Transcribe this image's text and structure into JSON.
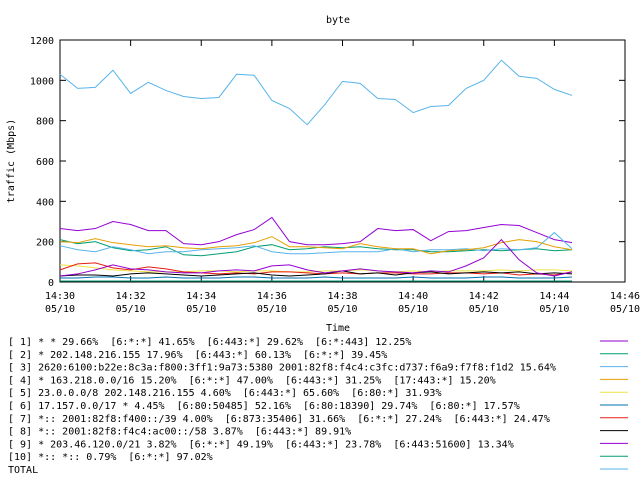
{
  "chart_data": {
    "type": "line",
    "title": "byte",
    "x_label": "Time",
    "y_label": "traffic (Mbps)",
    "x": [
      870,
      870.5,
      871,
      871.5,
      872,
      872.5,
      873,
      873.5,
      874,
      874.5,
      875,
      875.5,
      876,
      876.5,
      877,
      877.5,
      878,
      878.5,
      879,
      879.5,
      880,
      880.5,
      881,
      881.5,
      882,
      882.5,
      883,
      883.5,
      884,
      884.5
    ],
    "xlim": [
      870,
      886
    ],
    "xticks": [
      {
        "value": 870,
        "label": "14:30",
        "date": "05/10"
      },
      {
        "value": 872,
        "label": "14:32",
        "date": "05/10"
      },
      {
        "value": 874,
        "label": "14:34",
        "date": "05/10"
      },
      {
        "value": 876,
        "label": "14:36",
        "date": "05/10"
      },
      {
        "value": 878,
        "label": "14:38",
        "date": "05/10"
      },
      {
        "value": 880,
        "label": "14:40",
        "date": "05/10"
      },
      {
        "value": 882,
        "label": "14:42",
        "date": "05/10"
      },
      {
        "value": 884,
        "label": "14:44",
        "date": "05/10"
      },
      {
        "value": 886,
        "label": "14:46",
        "date": "05/10"
      }
    ],
    "ylim": [
      0,
      1200
    ],
    "yticks": [
      0,
      200,
      400,
      600,
      800,
      1000,
      1200
    ],
    "grid": false,
    "series": [
      {
        "name": "[ 1] * * 29.66%  [6:*:*] 41.65%  [6:443:*] 29.62%  [6:*:443] 12.25%",
        "color": "#9400d3",
        "values": [
          265,
          255,
          265,
          300,
          285,
          255,
          255,
          190,
          185,
          200,
          235,
          260,
          320,
          200,
          185,
          185,
          190,
          200,
          265,
          255,
          260,
          205,
          250,
          255,
          270,
          285,
          280,
          245,
          210,
          195
        ]
      },
      {
        "name": "[ 2] * 202.148.216.155 17.96%  [6:443:*] 60.13%  [6:*:*] 39.45%",
        "color": "#009e73",
        "values": [
          210,
          190,
          200,
          170,
          155,
          160,
          175,
          135,
          130,
          140,
          150,
          175,
          185,
          160,
          165,
          175,
          170,
          175,
          165,
          160,
          160,
          150,
          150,
          155,
          160,
          155,
          160,
          165,
          155,
          160
        ]
      },
      {
        "name": "[ 3] 2620:6100:b22e:8c3a:f800:3ff1:9a73:5380 2001:82f8:f4c4:c3fc:d737:f6a9:f7f8:f1d2 15.64%",
        "color": "#56b4e9",
        "values": [
          180,
          160,
          150,
          175,
          160,
          140,
          150,
          150,
          160,
          165,
          170,
          180,
          150,
          140,
          140,
          145,
          150,
          150,
          150,
          165,
          150,
          160,
          160,
          165,
          155,
          165,
          160,
          170,
          245,
          165
        ]
      },
      {
        "name": "[ 4] * 163.218.0.0/16 15.20%  [6:*:*] 47.00%  [6:443:*] 31.25%  [17:443:*] 15.20%",
        "color": "#e69f00",
        "values": [
          200,
          195,
          215,
          195,
          185,
          175,
          180,
          170,
          165,
          175,
          180,
          195,
          225,
          175,
          175,
          170,
          165,
          190,
          175,
          165,
          165,
          140,
          155,
          160,
          170,
          195,
          210,
          200,
          175,
          160
        ]
      },
      {
        "name": "[ 5] 23.0.0.0/8 202.148.216.155 4.60%  [6:443:*] 65.60%  [6:80:*] 31.93%",
        "color": "#f0e442",
        "values": [
          85,
          80,
          70,
          60,
          55,
          50,
          50,
          50,
          55,
          55,
          50,
          55,
          55,
          50,
          50,
          55,
          55,
          60,
          55,
          50,
          55,
          50,
          55,
          55,
          55,
          60,
          55,
          60,
          60,
          55
        ]
      },
      {
        "name": "[ 6] 17.157.0.0/17 * 4.45%  [6:80:50485] 52.16%  [6:80:18390] 29.74%  [6:80:*] 17.57%",
        "color": "#0072b2",
        "values": [
          20,
          20,
          25,
          25,
          20,
          20,
          25,
          20,
          20,
          20,
          25,
          25,
          20,
          20,
          20,
          25,
          20,
          20,
          20,
          20,
          25,
          20,
          20,
          20,
          25,
          25,
          20,
          20,
          20,
          25
        ]
      },
      {
        "name": "[ 7] *:: 2001:82f8:f400::/39 4.00%  [6:873:35406] 31.66%  [6:*:*] 27.24%  [6:443:*] 24.47%",
        "color": "#e51e10",
        "values": [
          60,
          90,
          95,
          70,
          60,
          75,
          65,
          50,
          45,
          40,
          45,
          40,
          50,
          50,
          45,
          40,
          45,
          40,
          45,
          45,
          40,
          40,
          45,
          45,
          40,
          45,
          35,
          40,
          35,
          50
        ]
      },
      {
        "name": "[ 8] *:: 2001:82f8:f4c4:ac00::/58 3.87%  [6:443:*] 89.91%",
        "color": "#000000",
        "values": [
          30,
          35,
          35,
          30,
          40,
          45,
          40,
          35,
          30,
          35,
          40,
          45,
          35,
          30,
          35,
          40,
          55,
          40,
          45,
          35,
          45,
          50,
          40,
          45,
          50,
          45,
          50,
          40,
          45,
          40
        ]
      },
      {
        "name": "[ 9] * 203.46.120.0/21 3.82%  [6:*:*] 49.19%  [6:443:*] 23.78%  [6:443:51600] 13.34%",
        "color": "#9400d3",
        "values": [
          30,
          40,
          60,
          85,
          65,
          60,
          50,
          45,
          45,
          55,
          60,
          55,
          80,
          85,
          60,
          45,
          55,
          65,
          55,
          50,
          45,
          55,
          50,
          80,
          120,
          210,
          110,
          45,
          30,
          50
        ]
      },
      {
        "name": "[10] *:: *:: 0.79%  [6:*:*] 97.02%",
        "color": "#009e73",
        "values": [
          5,
          5,
          5,
          5,
          5,
          5,
          5,
          5,
          5,
          5,
          5,
          5,
          5,
          5,
          5,
          5,
          5,
          5,
          5,
          5,
          5,
          5,
          5,
          5,
          5,
          5,
          5,
          5,
          5,
          5
        ]
      },
      {
        "name": "TOTAL",
        "color": "#56b4e9",
        "values": [
          1030,
          960,
          965,
          1050,
          935,
          990,
          950,
          920,
          910,
          915,
          1030,
          1025,
          900,
          860,
          780,
          880,
          995,
          985,
          910,
          905,
          840,
          870,
          875,
          960,
          1000,
          1100,
          1020,
          1010,
          955,
          925
        ]
      }
    ]
  }
}
